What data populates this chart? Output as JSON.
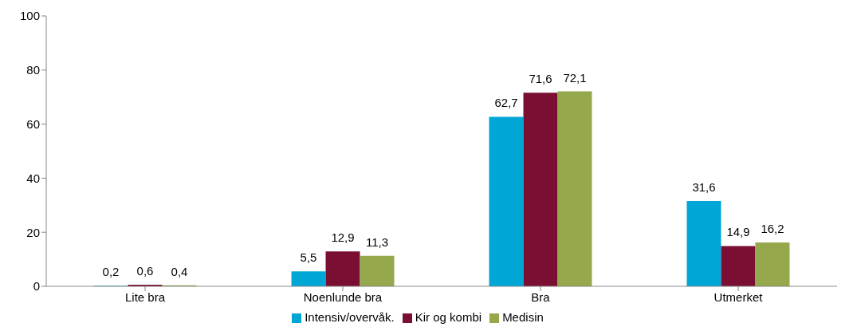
{
  "chart_data": {
    "type": "bar",
    "categories": [
      "Lite bra",
      "Noenlunde bra",
      "Bra",
      "Utmerket"
    ],
    "series": [
      {
        "name": "Intensiv/overvåk.",
        "color": "#00a6d6",
        "values": [
          0.2,
          5.5,
          62.7,
          31.6
        ],
        "value_labels": [
          "0,2",
          "5,5",
          "62,7",
          "31,6"
        ]
      },
      {
        "name": "Kir og kombi",
        "color": "#7a0f33",
        "values": [
          0.6,
          12.9,
          71.6,
          14.9
        ],
        "value_labels": [
          "0,6",
          "12,9",
          "71,6",
          "14,9"
        ]
      },
      {
        "name": "Medisin",
        "color": "#95a84c",
        "values": [
          0.4,
          11.3,
          72.1,
          16.2
        ],
        "value_labels": [
          "0,4",
          "11,3",
          "72,1",
          "16,2"
        ]
      }
    ],
    "ylim": [
      0,
      100
    ],
    "yticks": [
      0,
      20,
      40,
      60,
      80,
      100
    ],
    "grid": false,
    "legend": "bottom"
  }
}
